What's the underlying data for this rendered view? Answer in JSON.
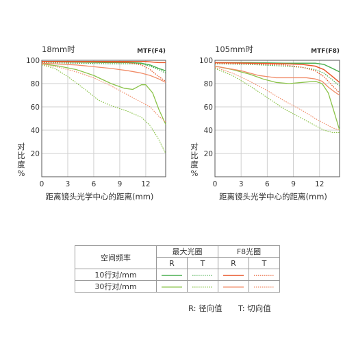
{
  "colors": {
    "r_max": "#4caf50",
    "t_max": "#8bc34a",
    "r_f8": "#e8572a",
    "t_f8": "#f08c68"
  },
  "chart_data": [
    {
      "type": "line",
      "title": "18mm时",
      "aperture_label": "MTF(F4)",
      "xlabel": "距离镜头光学中心的距离(mm)",
      "ylabel": "对比度%",
      "xlim": [
        0,
        14.3
      ],
      "ylim": [
        0,
        100
      ],
      "xticks": [
        0,
        3,
        6,
        9,
        12
      ],
      "yticks": [
        20,
        40,
        60,
        80,
        100
      ],
      "series": [
        {
          "line": "r_max_10",
          "points": [
            [
              0,
              99
            ],
            [
              4,
              98.5
            ],
            [
              8,
              98
            ],
            [
              10,
              98
            ],
            [
              11.5,
              97.5
            ],
            [
              12.5,
              96
            ],
            [
              13.5,
              93
            ],
            [
              14.3,
              91
            ]
          ]
        },
        {
          "line": "t_max_10",
          "points": [
            [
              0,
              98
            ],
            [
              4,
              97.5
            ],
            [
              8,
              97
            ],
            [
              10,
              97
            ],
            [
              11.5,
              97
            ],
            [
              12.5,
              95
            ],
            [
              13.5,
              92
            ],
            [
              14.3,
              89
            ]
          ]
        },
        {
          "line": "r_f8_10",
          "points": [
            [
              0,
              99
            ],
            [
              6,
              99
            ],
            [
              10,
              99
            ],
            [
              12,
              99
            ],
            [
              13.5,
              98
            ],
            [
              14.3,
              98
            ]
          ]
        },
        {
          "line": "t_f8_10",
          "points": [
            [
              0,
              98.5
            ],
            [
              6,
              98.5
            ],
            [
              10,
              98
            ],
            [
              11.5,
              96
            ],
            [
              12.5,
              92
            ],
            [
              13.5,
              86
            ],
            [
              14.3,
              82
            ]
          ]
        },
        {
          "line": "r_max_30",
          "points": [
            [
              0,
              97
            ],
            [
              2,
              95
            ],
            [
              4,
              92
            ],
            [
              6,
              87
            ],
            [
              8,
              80
            ],
            [
              9.5,
              76
            ],
            [
              10.5,
              75
            ],
            [
              11.5,
              79
            ],
            [
              12,
              79
            ],
            [
              12.8,
              72
            ],
            [
              13.5,
              58
            ],
            [
              14.3,
              45
            ]
          ]
        },
        {
          "line": "t_max_30",
          "points": [
            [
              0,
              96
            ],
            [
              1.5,
              93
            ],
            [
              3,
              86
            ],
            [
              5,
              75
            ],
            [
              6.5,
              66
            ],
            [
              8,
              61
            ],
            [
              10,
              56
            ],
            [
              11.5,
              51
            ],
            [
              12.5,
              44
            ],
            [
              13.5,
              32
            ],
            [
              14.3,
              20
            ]
          ]
        },
        {
          "line": "r_f8_30",
          "points": [
            [
              0,
              97.5
            ],
            [
              4,
              96
            ],
            [
              8,
              93
            ],
            [
              10,
              91
            ],
            [
              11.5,
              89
            ],
            [
              12.5,
              87
            ],
            [
              13.5,
              84
            ],
            [
              14.3,
              81
            ]
          ]
        },
        {
          "line": "t_f8_30",
          "points": [
            [
              0,
              96.5
            ],
            [
              2,
              94
            ],
            [
              4,
              90
            ],
            [
              6,
              85
            ],
            [
              8,
              78
            ],
            [
              10,
              70
            ],
            [
              11.5,
              64
            ],
            [
              12.5,
              60
            ],
            [
              13.5,
              52
            ],
            [
              14.3,
              47
            ]
          ]
        }
      ]
    },
    {
      "type": "line",
      "title": "105mm时",
      "aperture_label": "MTF(F8)",
      "xlabel": "距离镜头光学中心的距离(mm)",
      "ylabel": "对比度%",
      "xlim": [
        0,
        14.3
      ],
      "ylim": [
        0,
        100
      ],
      "xticks": [
        0,
        3,
        6,
        9,
        12
      ],
      "yticks": [
        20,
        40,
        60,
        80,
        100
      ],
      "series": [
        {
          "line": "r_max_10",
          "points": [
            [
              0,
              98
            ],
            [
              4,
              98
            ],
            [
              8,
              97.5
            ],
            [
              10,
              97.5
            ],
            [
              11.5,
              97.5
            ],
            [
              12.5,
              96.5
            ],
            [
              13.5,
              93
            ],
            [
              14.3,
              90
            ]
          ]
        },
        {
          "line": "t_max_10",
          "points": [
            [
              0,
              97
            ],
            [
              4,
              96.5
            ],
            [
              8,
              95
            ],
            [
              10,
              94
            ],
            [
              11.5,
              92
            ],
            [
              12.5,
              89
            ],
            [
              13.5,
              83
            ],
            [
              14.3,
              78
            ]
          ]
        },
        {
          "line": "r_f8_10",
          "points": [
            [
              0,
              98
            ],
            [
              4,
              97.5
            ],
            [
              8,
              97
            ],
            [
              10,
              96.5
            ],
            [
              11.5,
              95
            ],
            [
              12.5,
              92
            ],
            [
              13.5,
              86
            ],
            [
              14.3,
              81
            ]
          ]
        },
        {
          "line": "t_f8_10",
          "points": [
            [
              0,
              97.5
            ],
            [
              4,
              97
            ],
            [
              8,
              96
            ],
            [
              10,
              94
            ],
            [
              11.5,
              91
            ],
            [
              12.5,
              86
            ],
            [
              13.5,
              78
            ],
            [
              14.3,
              72
            ]
          ]
        },
        {
          "line": "r_max_30",
          "points": [
            [
              0,
              95
            ],
            [
              2,
              92
            ],
            [
              4,
              88
            ],
            [
              5.5,
              84
            ],
            [
              7,
              81
            ],
            [
              8.5,
              80
            ],
            [
              10,
              81
            ],
            [
              11.5,
              82
            ],
            [
              12.3,
              80
            ],
            [
              13,
              72
            ],
            [
              13.7,
              55
            ],
            [
              14.3,
              40
            ]
          ]
        },
        {
          "line": "t_max_30",
          "points": [
            [
              0,
              93
            ],
            [
              2,
              87
            ],
            [
              4,
              78
            ],
            [
              6,
              68
            ],
            [
              8,
              58
            ],
            [
              10,
              50
            ],
            [
              11.5,
              44
            ],
            [
              12.5,
              40
            ],
            [
              13.5,
              38
            ],
            [
              14.3,
              38
            ]
          ]
        },
        {
          "line": "r_f8_30",
          "points": [
            [
              0,
              95
            ],
            [
              3,
              91
            ],
            [
              5,
              87
            ],
            [
              7,
              85
            ],
            [
              9,
              85
            ],
            [
              10.5,
              85
            ],
            [
              11.5,
              84
            ],
            [
              12.3,
              82
            ],
            [
              13,
              77
            ],
            [
              13.7,
              73
            ],
            [
              14.3,
              70
            ]
          ]
        },
        {
          "line": "t_f8_30",
          "points": [
            [
              0,
              94
            ],
            [
              2,
              89
            ],
            [
              4,
              82
            ],
            [
              6,
              74
            ],
            [
              8,
              65
            ],
            [
              10,
              57
            ],
            [
              11.5,
              50
            ],
            [
              12.5,
              46
            ],
            [
              13.5,
              42
            ],
            [
              14.3,
              40
            ]
          ]
        }
      ]
    }
  ],
  "legend": {
    "header_freq": "空间频率",
    "header_max": "最大光圈",
    "header_f8": "F8光圈",
    "r": "R",
    "t": "T",
    "row10": "10行对/mm",
    "row30": "30行对/mm"
  },
  "notes": {
    "r_text": "R:  径向值",
    "t_text": "T:  切向值"
  }
}
